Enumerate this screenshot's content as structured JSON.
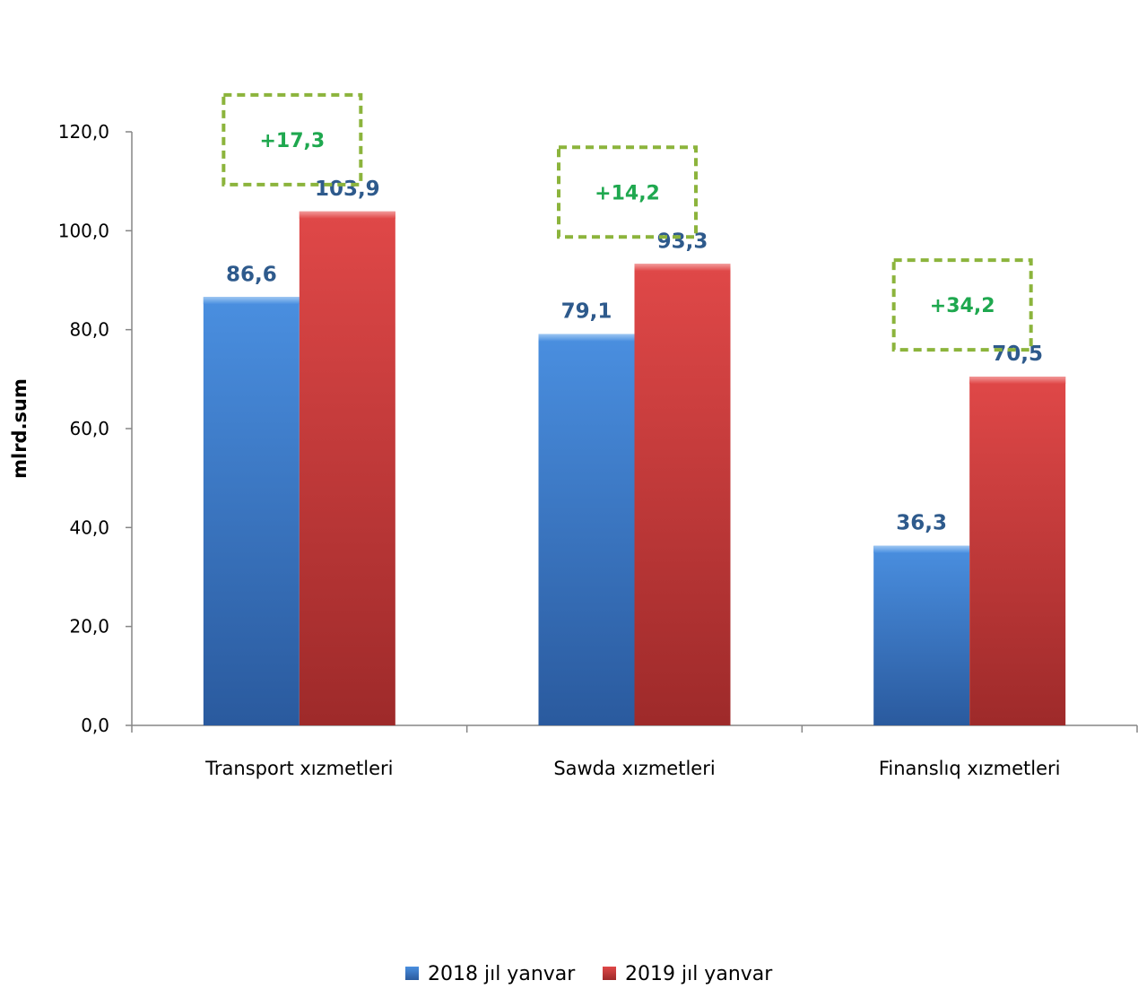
{
  "chart_data": {
    "type": "bar",
    "ylabel": "mlrd.sum",
    "xlabel": "",
    "ylim": [
      0,
      120
    ],
    "ytick_step": 20,
    "ytick_labels": [
      "0,0",
      "20,0",
      "40,0",
      "60,0",
      "80,0",
      "100,0",
      "120,0"
    ],
    "categories": [
      "Transport  xızmetleri",
      "Sawda  xızmetleri",
      "Finanslıq  xızmetleri"
    ],
    "series": [
      {
        "name": "2018 jıl yanvar",
        "color": "#3f7fcf",
        "values": [
          86.6,
          79.1,
          36.3
        ],
        "labels": [
          "86,6",
          "79,1",
          "36,3"
        ]
      },
      {
        "name": "2019 jıl yanvar",
        "color": "#d03b3b",
        "values": [
          103.9,
          93.3,
          70.5
        ],
        "labels": [
          "103,9",
          "93,3",
          "70,5"
        ]
      }
    ],
    "annotations": [
      "+17,3",
      "+14,2",
      "+34,2"
    ],
    "annotation_color": "#1fa84f",
    "annotation_border_color": "#8cb43c",
    "legend_position": "bottom",
    "grid": false
  }
}
